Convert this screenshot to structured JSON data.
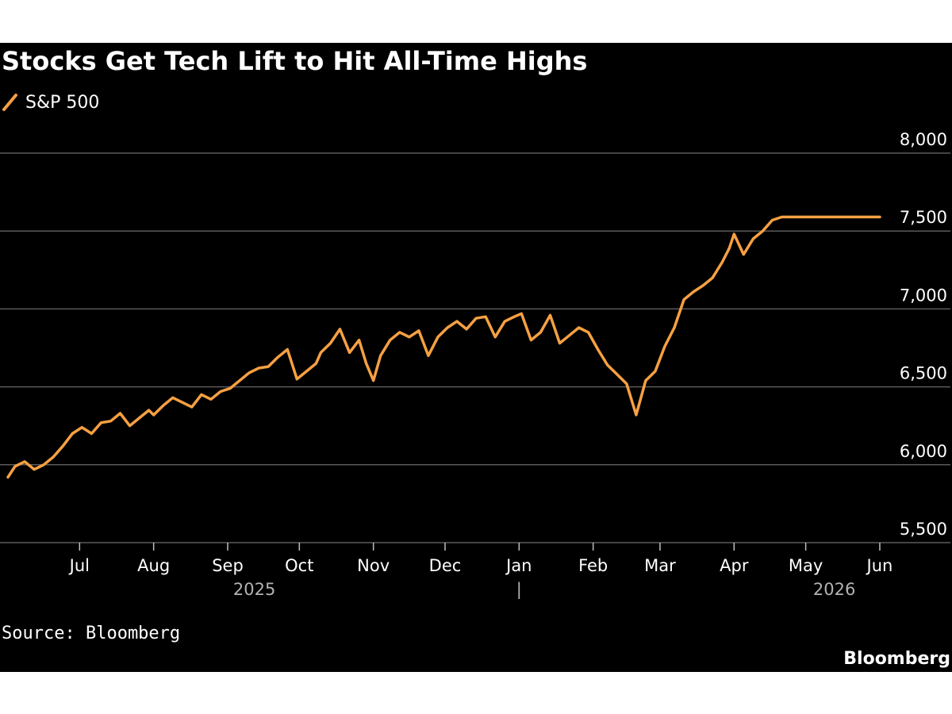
{
  "chart_data": {
    "type": "line",
    "title": "Stocks Get Tech Lift to Hit All-Time Highs",
    "series": [
      {
        "name": "S&P 500",
        "color": "#F6A042",
        "x": [
          "2025-06-01",
          "2025-06-04",
          "2025-06-08",
          "2025-06-12",
          "2025-06-16",
          "2025-06-20",
          "2025-06-24",
          "2025-06-28",
          "2025-07-02",
          "2025-07-06",
          "2025-07-10",
          "2025-07-14",
          "2025-07-18",
          "2025-07-22",
          "2025-07-26",
          "2025-07-30",
          "2025-08-01",
          "2025-08-05",
          "2025-08-09",
          "2025-08-13",
          "2025-08-17",
          "2025-08-21",
          "2025-08-25",
          "2025-08-29",
          "2025-09-02",
          "2025-09-06",
          "2025-09-10",
          "2025-09-14",
          "2025-09-18",
          "2025-09-22",
          "2025-09-26",
          "2025-09-30",
          "2025-10-04",
          "2025-10-08",
          "2025-10-10",
          "2025-10-14",
          "2025-10-18",
          "2025-10-22",
          "2025-10-26",
          "2025-10-29",
          "2025-11-01",
          "2025-11-04",
          "2025-11-08",
          "2025-11-12",
          "2025-11-16",
          "2025-11-20",
          "2025-11-24",
          "2025-11-28",
          "2025-12-02",
          "2025-12-06",
          "2025-12-10",
          "2025-12-14",
          "2025-12-18",
          "2025-12-22",
          "2025-12-26",
          "2025-12-30",
          "2026-01-02",
          "2026-01-06",
          "2026-01-10",
          "2026-01-14",
          "2026-01-18",
          "2026-01-22",
          "2026-01-26",
          "2026-01-30",
          "2026-02-03",
          "2026-02-07",
          "2026-02-11",
          "2026-02-15",
          "2026-02-19",
          "2026-02-23",
          "2026-02-27",
          "2026-03-03",
          "2026-03-07",
          "2026-03-11",
          "2026-03-15",
          "2026-03-19",
          "2026-03-23",
          "2026-03-27",
          "2026-03-30",
          "2026-04-01",
          "2026-04-05",
          "2026-04-09",
          "2026-04-13",
          "2026-04-17",
          "2026-04-21",
          "2026-04-25",
          "2026-04-29",
          "2026-05-03",
          "2026-05-07",
          "2026-05-11",
          "2026-05-15",
          "2026-05-19",
          "2026-05-23",
          "2026-05-27",
          "2026-06-01"
        ],
        "values": [
          5920,
          5990,
          6020,
          5970,
          6000,
          6050,
          6120,
          6200,
          6240,
          6200,
          6270,
          6280,
          6330,
          6250,
          6300,
          6350,
          6320,
          6380,
          6430,
          6400,
          6370,
          6450,
          6420,
          6470,
          6490,
          6540,
          6590,
          6620,
          6630,
          6690,
          6740,
          6550,
          6600,
          6650,
          6720,
          6780,
          6870,
          6720,
          6800,
          6650,
          6540,
          6700,
          6800,
          6850,
          6820,
          6860,
          6700,
          6820,
          6880,
          6920,
          6870,
          6940,
          6950,
          6820,
          6920,
          6950,
          6970,
          6800,
          6850,
          6960,
          6780,
          6830,
          6880,
          6850,
          6740,
          6640,
          6580,
          6520,
          6320,
          6540,
          6600,
          6760,
          6880,
          7060,
          7110,
          7150,
          7200,
          7300,
          7390,
          7480,
          7350,
          7450,
          7500,
          7570,
          7590,
          7590,
          7590,
          7590,
          7590,
          7590,
          7590,
          7590,
          7590,
          7590,
          7590
        ],
        "values_note": ""
      }
    ],
    "x_ticks": [
      "Jul",
      "Aug",
      "Sep",
      "Oct",
      "Nov",
      "Dec",
      "Jan",
      "Feb",
      "Mar",
      "Apr",
      "May",
      "Jun"
    ],
    "x_tick_dates": [
      "2025-07-01",
      "2025-08-01",
      "2025-09-01",
      "2025-10-01",
      "2025-11-01",
      "2025-12-01",
      "2026-01-01",
      "2026-02-01",
      "2026-03-01",
      "2026-04-01",
      "2026-05-01",
      "2026-06-01"
    ],
    "year_labels": [
      "2025",
      "|",
      "2026"
    ],
    "y_ticks": [
      "8,000",
      "7,500",
      "7,000",
      "6,500",
      "6,000",
      "5,500"
    ],
    "y_tick_values": [
      8000,
      7500,
      7000,
      6500,
      6000,
      5500
    ],
    "ylim": [
      5500,
      8000
    ],
    "xlim": [
      "2025-06-01",
      "2026-06-04"
    ],
    "grid": "horizontal",
    "legend": "top-left",
    "source": "Source: Bloomberg",
    "brand": "Bloomberg"
  },
  "colors": {
    "background": "#000000",
    "text": "#ffffff",
    "grid": "#5a5a5a",
    "line": "#F6A042",
    "year_label": "#b3b3b3"
  }
}
